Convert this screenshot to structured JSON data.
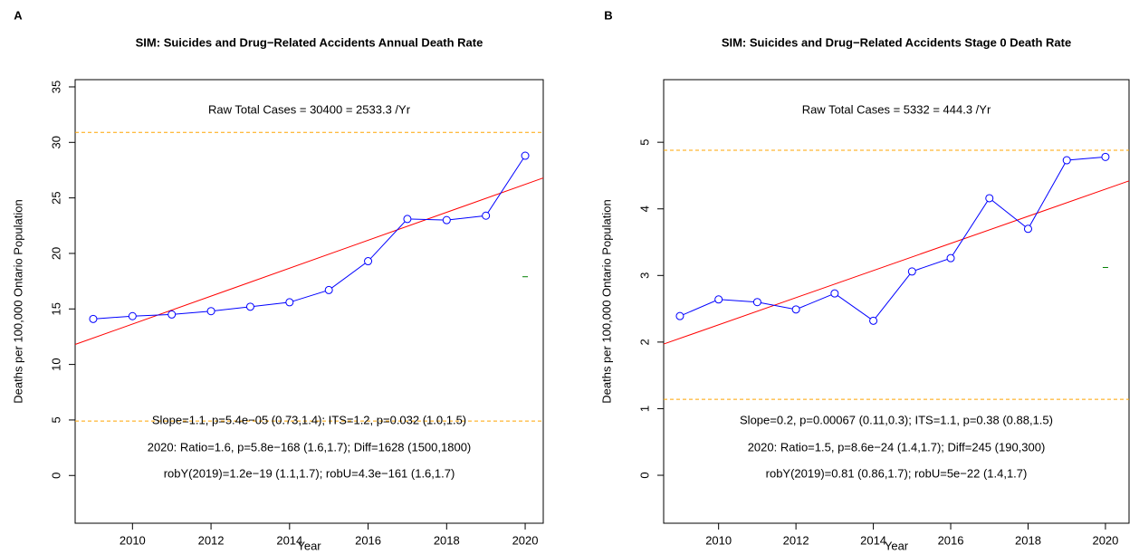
{
  "chart_data": [
    {
      "type": "line",
      "panel": "A",
      "title": "SIM: Suicides and Drug−Related Accidents Annual Death Rate",
      "xlabel": "Year",
      "ylabel": "Deaths per 100,000 Ontario Population",
      "x": [
        2009,
        2010,
        2011,
        2012,
        2013,
        2014,
        2015,
        2016,
        2017,
        2018,
        2019,
        2020
      ],
      "series": [
        {
          "color": "#0000ff",
          "values": [
            14.1,
            14.35,
            14.5,
            14.8,
            15.2,
            15.6,
            16.7,
            19.3,
            23.1,
            23.0,
            23.4,
            28.8
          ]
        }
      ],
      "xlim": [
        2008.54,
        2020.46
      ],
      "ylim": [
        -4.3,
        35.65
      ],
      "xticks": [
        2010,
        2012,
        2014,
        2016,
        2018,
        2020
      ],
      "yticks": [
        0,
        5,
        10,
        15,
        20,
        25,
        30,
        35
      ],
      "hlines": [
        {
          "value": 30.9,
          "color": "#ffa500"
        },
        {
          "value": 4.9,
          "color": "#ffa500"
        }
      ],
      "trend": {
        "color": "#ff0000",
        "x": [
          2008.54,
          2020.46
        ],
        "values": [
          11.8,
          26.8
        ]
      },
      "marker": {
        "color": "#008000",
        "x": 2020,
        "value": 17.9
      },
      "annotations": [
        {
          "text": "Raw Total Cases = 30400 = 2533.3 /Yr",
          "color": "#b22222"
        },
        {
          "text": "Slope=1.1, p=5.4e−05 (0.73,1.4);  ITS=1.2, p=0.032 (1.0,1.5)",
          "color": "#ff0000"
        },
        {
          "text": "2020:  Ratio=1.6, p=5.8e−168 (1.6,1.7);  Diff=1628 (1500,1800)",
          "color": "#228b22"
        },
        {
          "text": "robY(2019)=1.2e−19 (1.1,1.7); robU=4.3e−161 (1.6,1.7)",
          "color": "#b22222"
        }
      ]
    },
    {
      "type": "line",
      "panel": "B",
      "title": "SIM: Suicides and Drug−Related Accidents Stage 0 Death Rate",
      "xlabel": "Year",
      "ylabel": "Deaths per 100,000 Ontario Population",
      "x": [
        2009,
        2010,
        2011,
        2012,
        2013,
        2014,
        2015,
        2016,
        2017,
        2018,
        2019,
        2020
      ],
      "series": [
        {
          "color": "#0000ff",
          "values": [
            2.39,
            2.64,
            2.6,
            2.49,
            2.73,
            2.32,
            3.06,
            3.26,
            4.16,
            3.7,
            4.73,
            4.78
          ]
        }
      ],
      "xlim": [
        2008.58,
        2020.61
      ],
      "ylim": [
        -0.72,
        5.94
      ],
      "xticks": [
        2010,
        2012,
        2014,
        2016,
        2018,
        2020
      ],
      "yticks": [
        0,
        1,
        2,
        3,
        4,
        5
      ],
      "hlines": [
        {
          "value": 4.88,
          "color": "#ffa500"
        },
        {
          "value": 1.14,
          "color": "#ffa500"
        }
      ],
      "trend": {
        "color": "#ff0000",
        "x": [
          2008.58,
          2020.61
        ],
        "values": [
          1.97,
          4.42
        ]
      },
      "marker": {
        "color": "#008000",
        "x": 2020,
        "value": 3.12
      },
      "annotations": [
        {
          "text": "Raw Total Cases = 5332 = 444.3 /Yr",
          "color": "#b22222"
        },
        {
          "text": "Slope=0.2, p=0.00067 (0.11,0.3);  ITS=1.1, p=0.38 (0.88,1.5)",
          "color": "#ff0000"
        },
        {
          "text": "2020:  Ratio=1.5, p=8.6e−24 (1.4,1.7);  Diff=245 (190,300)",
          "color": "#228b22"
        },
        {
          "text": "robY(2019)=0.81 (0.86,1.7); robU=5e−22 (1.4,1.7)",
          "color": "#b22222"
        }
      ]
    }
  ]
}
